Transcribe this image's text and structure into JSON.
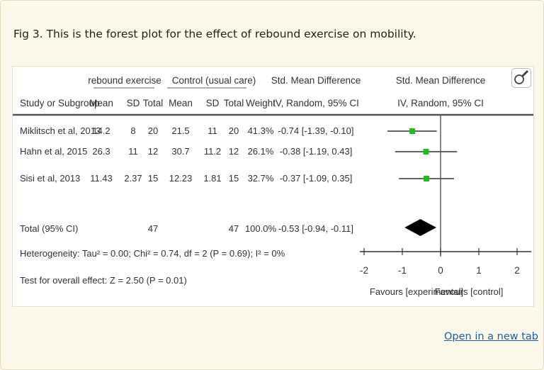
{
  "caption": "Fig 3. This is the forest plot for the effect of rebound exercise on mobility.",
  "open_link": "Open in a new tab",
  "zoom_icon": "magnifier-icon",
  "chart_data": {
    "type": "forest",
    "group_headers": {
      "experimental": "rebound exercise",
      "control": "Control (usual care)",
      "effect": "Std. Mean Difference",
      "plot": "Std. Mean Difference"
    },
    "columns": {
      "study": "Study or Subgroup",
      "mean_e": "Mean",
      "sd_e": "SD",
      "total_e": "Total",
      "mean_c": "Mean",
      "sd_c": "SD",
      "total_c": "Total",
      "weight": "Weight",
      "ci": "IV, Random, 95% CI",
      "plot_ci": "IV, Random, 95% CI"
    },
    "studies": [
      {
        "name": "Miklitsch et al, 2013",
        "mean_e": "14.2",
        "sd_e": "8",
        "total_e": "20",
        "mean_c": "21.5",
        "sd_c": "11",
        "total_c": "20",
        "weight": "41.3%",
        "ci_text": "-0.74 [-1.39, -0.10]",
        "smd": -0.74,
        "lo": -1.39,
        "hi": -0.1
      },
      {
        "name": "Hahn et al, 2015",
        "mean_e": "26.3",
        "sd_e": "11",
        "total_e": "12",
        "mean_c": "30.7",
        "sd_c": "11.2",
        "total_c": "12",
        "weight": "26.1%",
        "ci_text": "-0.38 [-1.19, 0.43]",
        "smd": -0.38,
        "lo": -1.19,
        "hi": 0.43
      },
      {
        "name": "Sisi et al, 2013",
        "mean_e": "11.43",
        "sd_e": "2.37",
        "total_e": "15",
        "mean_c": "12.23",
        "sd_c": "1.81",
        "total_c": "15",
        "weight": "32.7%",
        "ci_text": "-0.37 [-1.09, 0.35]",
        "smd": -0.37,
        "lo": -1.09,
        "hi": 0.35
      }
    ],
    "total": {
      "name": "Total (95% CI)",
      "total_e": "47",
      "total_c": "47",
      "weight": "100.0%",
      "ci_text": "-0.53 [-0.94, -0.11]",
      "smd": -0.53,
      "lo": -0.94,
      "hi": -0.11
    },
    "heterogeneity": "Heterogeneity: Tau² = 0.00; Chi² = 0.74, df = 2 (P = 0.69); I² = 0%",
    "overall_effect": "Test for overall effect: Z = 2.50 (P = 0.01)",
    "xlim": [
      -2,
      2
    ],
    "ticks": [
      -2,
      -1,
      0,
      1,
      2
    ],
    "tick_labels": [
      "-2",
      "-1",
      "0",
      "1",
      "2"
    ],
    "favours_left": "Favours [experimental]",
    "favours_right": "Favours [control]",
    "marker_color": "#22bb22",
    "diamond_color": "#000000"
  }
}
